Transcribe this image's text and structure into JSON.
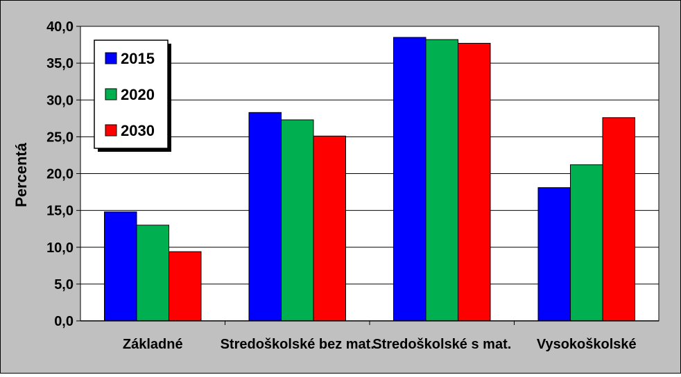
{
  "chart_data": {
    "type": "bar",
    "title": "",
    "xlabel": "",
    "ylabel": "Percentá",
    "ylim": [
      0,
      40
    ],
    "yticks": [
      "0,0",
      "5,0",
      "10,0",
      "15,0",
      "20,0",
      "25,0",
      "30,0",
      "35,0",
      "40,0"
    ],
    "categories": [
      "Základné",
      "Stredoškolské bez mat.",
      "Stredoškolské s mat.",
      "Vysokoškolské"
    ],
    "series": [
      {
        "name": "2015",
        "color": "#0000ff",
        "values": [
          14.8,
          28.3,
          38.5,
          18.1
        ]
      },
      {
        "name": "2020",
        "color": "#00b050",
        "values": [
          13.0,
          27.3,
          38.2,
          21.2
        ]
      },
      {
        "name": "2030",
        "color": "#ff0000",
        "values": [
          9.4,
          25.1,
          37.7,
          27.6
        ]
      }
    ],
    "grid": true,
    "legend_position": "top-left",
    "background_color": "#c0c0c0",
    "plot_background_color": "#ffffff"
  }
}
